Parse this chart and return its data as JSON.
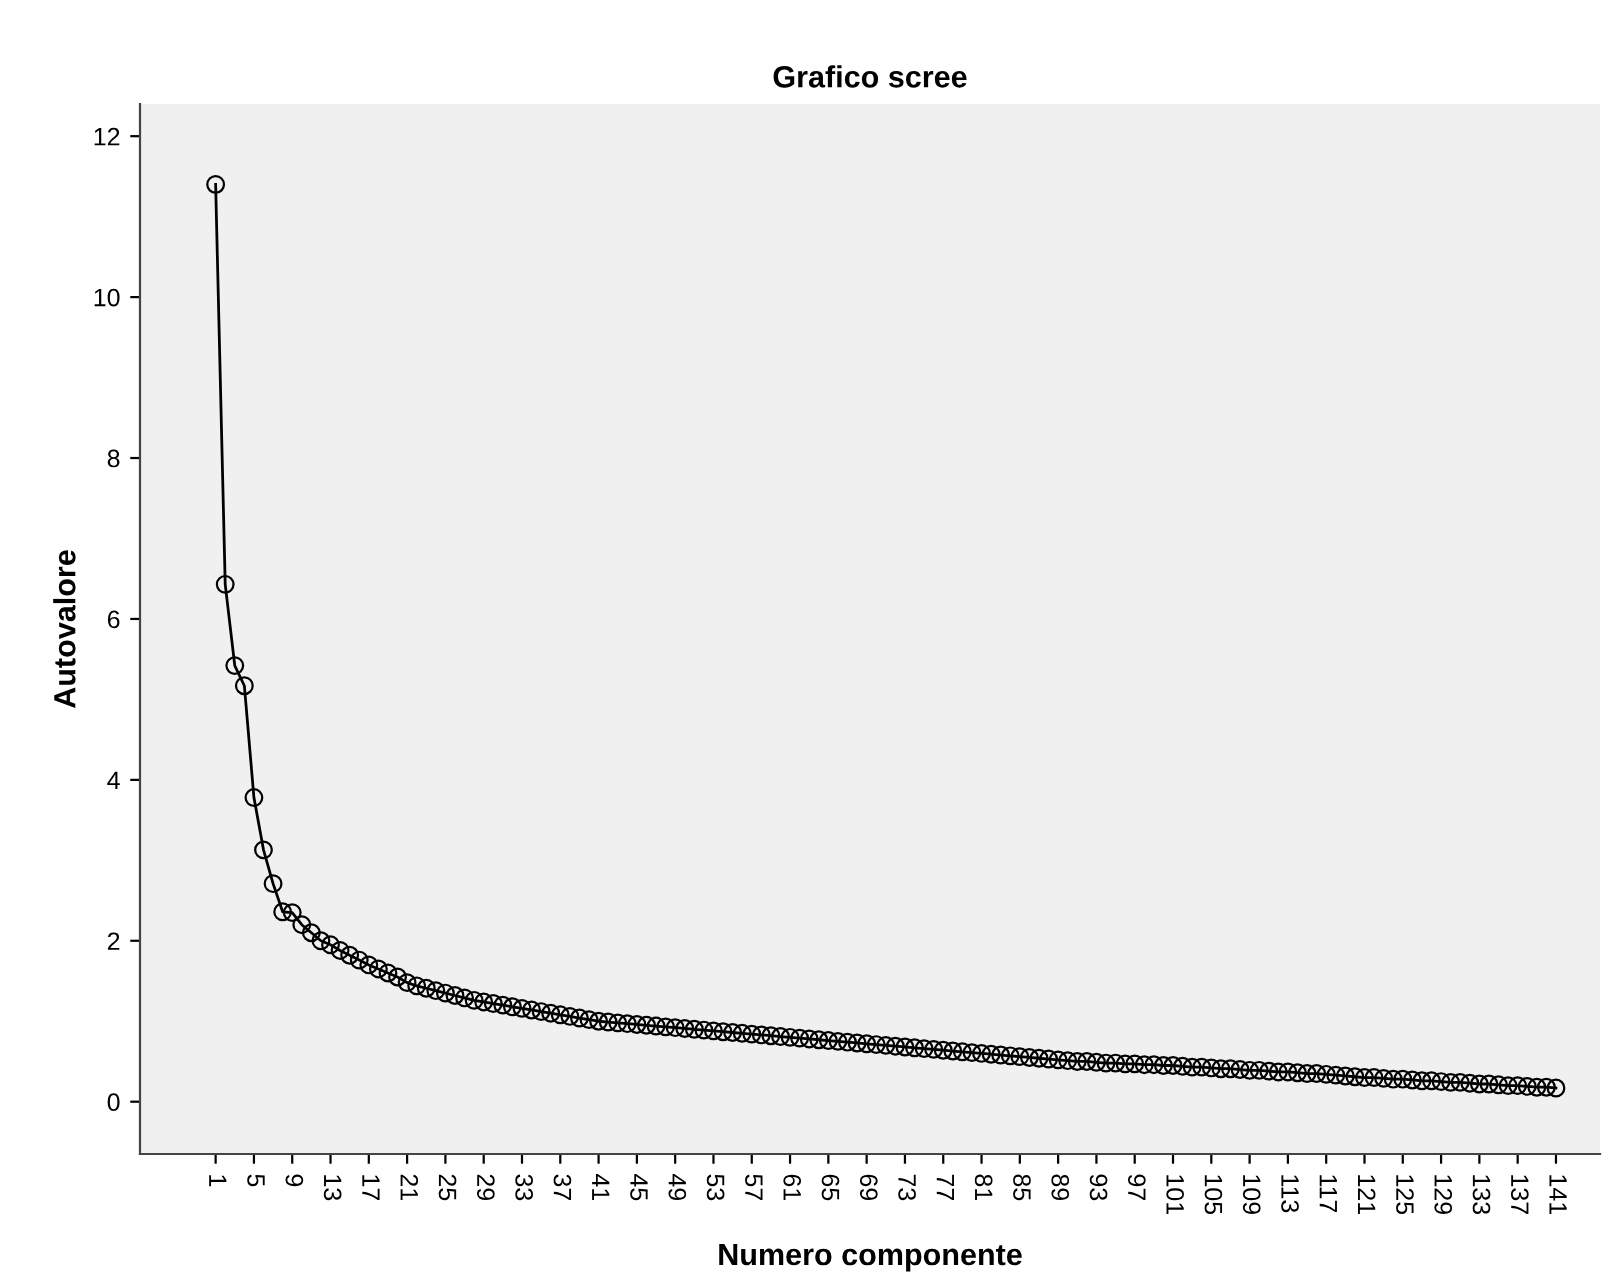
{
  "chart_data": {
    "type": "line",
    "title": "Grafico scree",
    "xlabel": "Numero componente",
    "ylabel": "Autovalore",
    "categories": [
      "1",
      null,
      null,
      null,
      "5",
      null,
      null,
      null,
      "9",
      null,
      null,
      null,
      "13",
      null,
      null,
      null,
      "17",
      null,
      null,
      null,
      "21",
      null,
      null,
      null,
      "25",
      null,
      null,
      null,
      "29",
      null,
      null,
      null,
      "33",
      null,
      null,
      null,
      "37",
      null,
      null,
      null,
      "41",
      null,
      null,
      null,
      "45",
      null,
      null,
      null,
      "49",
      null,
      null,
      null,
      "53",
      null,
      null,
      null,
      "57",
      null,
      null,
      null,
      "61",
      null,
      null,
      null,
      "65",
      null,
      null,
      null,
      "69",
      null,
      null,
      null,
      "73",
      null,
      null,
      null,
      "77",
      null,
      null,
      null,
      "81",
      null,
      null,
      null,
      "85",
      null,
      null,
      null,
      "89",
      null,
      null,
      null,
      "93",
      null,
      null,
      null,
      "97",
      null,
      null,
      null,
      "101",
      null,
      null,
      null,
      "105",
      null,
      null,
      null,
      "109",
      null,
      null,
      null,
      "113",
      null,
      null,
      null,
      "117",
      null,
      null,
      null,
      "121",
      null,
      null,
      null,
      "125",
      null,
      null,
      null,
      "129",
      null,
      null,
      null,
      "133",
      null,
      null,
      null,
      "137",
      null,
      null,
      null,
      "141"
    ],
    "series": [
      {
        "color": "#000000",
        "values": [
          11.4,
          6.43,
          5.42,
          5.17,
          3.78,
          3.13,
          2.71,
          2.36,
          2.35,
          2.2,
          2.1,
          2.0,
          1.95,
          1.88,
          1.82,
          1.76,
          1.7,
          1.65,
          1.6,
          1.55,
          1.48,
          1.44,
          1.41,
          1.38,
          1.35,
          1.32,
          1.29,
          1.26,
          1.24,
          1.22,
          1.2,
          1.18,
          1.16,
          1.14,
          1.12,
          1.1,
          1.08,
          1.06,
          1.04,
          1.02,
          1.0,
          0.99,
          0.98,
          0.97,
          0.96,
          0.95,
          0.94,
          0.93,
          0.92,
          0.91,
          0.9,
          0.89,
          0.88,
          0.87,
          0.86,
          0.85,
          0.84,
          0.83,
          0.82,
          0.81,
          0.8,
          0.79,
          0.78,
          0.77,
          0.76,
          0.75,
          0.74,
          0.73,
          0.72,
          0.71,
          0.7,
          0.69,
          0.68,
          0.67,
          0.66,
          0.65,
          0.64,
          0.63,
          0.62,
          0.61,
          0.6,
          0.59,
          0.58,
          0.57,
          0.56,
          0.55,
          0.54,
          0.53,
          0.52,
          0.51,
          0.5,
          0.5,
          0.49,
          0.48,
          0.48,
          0.47,
          0.47,
          0.46,
          0.46,
          0.45,
          0.45,
          0.44,
          0.43,
          0.43,
          0.42,
          0.41,
          0.41,
          0.4,
          0.39,
          0.39,
          0.38,
          0.37,
          0.37,
          0.36,
          0.35,
          0.35,
          0.34,
          0.33,
          0.32,
          0.31,
          0.3,
          0.3,
          0.29,
          0.28,
          0.28,
          0.27,
          0.26,
          0.26,
          0.25,
          0.24,
          0.24,
          0.23,
          0.22,
          0.22,
          0.21,
          0.2,
          0.2,
          0.19,
          0.18,
          0.18,
          0.17
        ]
      }
    ],
    "ylim": [
      -0.65,
      12.4
    ],
    "yticks": [
      0,
      2,
      4,
      6,
      8,
      10,
      12
    ],
    "marker": "circle",
    "line_style": "solid"
  }
}
